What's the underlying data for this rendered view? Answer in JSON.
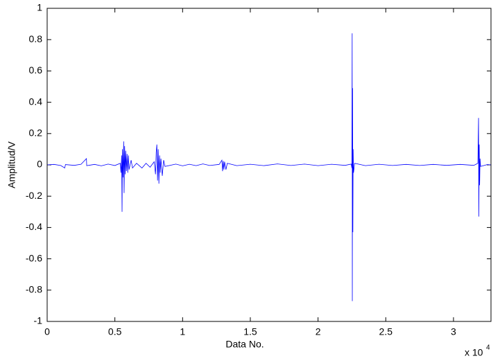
{
  "chart_data": {
    "type": "line",
    "xlabel": "Data No.",
    "ylabel": "Amplitud/V",
    "x_multiplier": "x 10",
    "x_multiplier_exponent": "4",
    "x": [
      0,
      0.05,
      0.1,
      0.13,
      0.135,
      0.2,
      0.25,
      0.29,
      0.292,
      0.35,
      0.4,
      0.45,
      0.5,
      0.54,
      0.545,
      0.55,
      0.553,
      0.556,
      0.56,
      0.565,
      0.568,
      0.572,
      0.576,
      0.58,
      0.585,
      0.59,
      0.595,
      0.6,
      0.605,
      0.62,
      0.63,
      0.66,
      0.7,
      0.73,
      0.76,
      0.79,
      0.8,
      0.805,
      0.81,
      0.815,
      0.82,
      0.825,
      0.83,
      0.835,
      0.84,
      0.85,
      0.86,
      0.87,
      0.95,
      1.0,
      1.05,
      1.1,
      1.15,
      1.2,
      1.27,
      1.29,
      1.295,
      1.3,
      1.305,
      1.31,
      1.32,
      1.33,
      1.4,
      1.5,
      1.6,
      1.7,
      1.8,
      1.9,
      2.0,
      2.1,
      2.2,
      2.245,
      2.25,
      2.252,
      2.253,
      2.255,
      2.257,
      2.259,
      2.262,
      2.27,
      2.35,
      2.45,
      2.55,
      2.65,
      2.75,
      2.85,
      2.95,
      3.05,
      3.15,
      3.18,
      3.185,
      3.187,
      3.19,
      3.193,
      3.196,
      3.2,
      3.25,
      3.2768
    ],
    "series": [
      {
        "color": "#0000ff",
        "values": [
          0,
          0.003,
          -0.004,
          -0.02,
          0.002,
          -0.003,
          0.004,
          0.04,
          -0.005,
          0.003,
          -0.006,
          0.005,
          -0.004,
          0.01,
          -0.05,
          0.06,
          -0.3,
          0.1,
          -0.08,
          0.15,
          -0.18,
          0.12,
          -0.06,
          0.09,
          -0.04,
          0.07,
          -0.05,
          0.06,
          -0.03,
          0.03,
          -0.02,
          0.01,
          -0.02,
          0.01,
          -0.015,
          0.02,
          -0.06,
          0.08,
          0.13,
          -0.1,
          0.1,
          -0.12,
          0.06,
          -0.05,
          0.04,
          -0.07,
          0.03,
          -0.01,
          0.005,
          -0.006,
          0.004,
          -0.005,
          0.006,
          -0.004,
          0.003,
          0.03,
          -0.04,
          0.025,
          -0.03,
          0.02,
          -0.03,
          0.01,
          -0.005,
          0.004,
          -0.005,
          0.006,
          -0.004,
          0.005,
          -0.005,
          0.004,
          -0.003,
          0.005,
          -0.02,
          0.84,
          -0.87,
          0.49,
          -0.43,
          0.1,
          -0.05,
          0.01,
          -0.005,
          0.004,
          -0.004,
          0.003,
          -0.004,
          0.003,
          -0.003,
          0.003,
          -0.003,
          0.01,
          0.3,
          -0.33,
          0.13,
          -0.13,
          0.04,
          -0.01,
          0.002,
          0
        ]
      }
    ],
    "xlim": [
      0,
      3.2768
    ],
    "ylim": [
      -1,
      1
    ],
    "xticks": [
      0,
      0.5,
      1,
      1.5,
      2,
      2.5,
      3
    ],
    "yticks": [
      -1,
      -0.8,
      -0.6,
      -0.4,
      -0.2,
      0,
      0.2,
      0.4,
      0.6,
      0.8,
      1
    ]
  }
}
